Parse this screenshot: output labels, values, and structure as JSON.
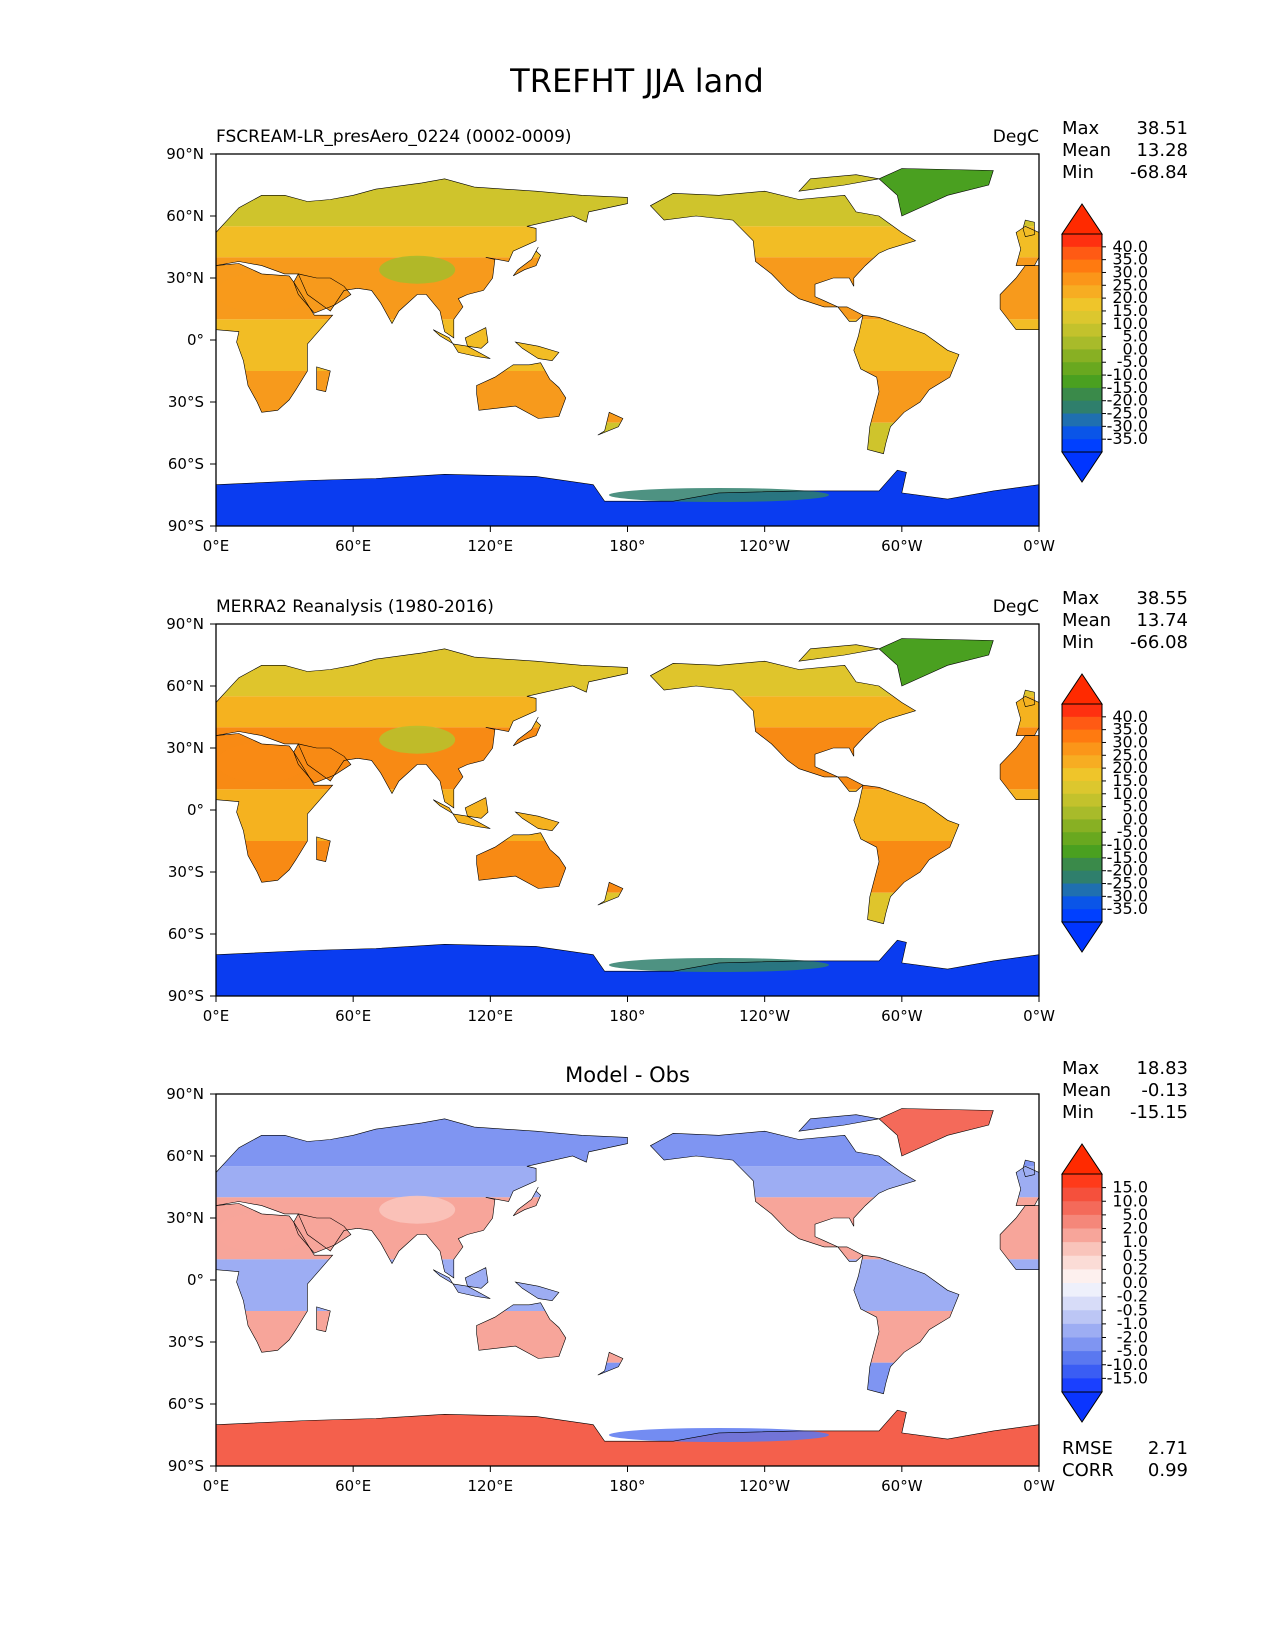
{
  "figure": {
    "title": "TREFHT JJA land"
  },
  "panels": [
    {
      "id": "model",
      "left_title": "FSCREAM-LR_presAero_0224 (0002-0009)",
      "center_title": "",
      "units": "DegC",
      "stats": [
        {
          "label": "Max",
          "value": "38.51"
        },
        {
          "label": "Mean",
          "value": "13.28"
        },
        {
          "label": "Min",
          "value": "-68.84"
        }
      ],
      "colorbar": {
        "labels": [
          "40.0",
          "35.0",
          "30.0",
          "25.0",
          "20.0",
          "15.0",
          "10.0",
          "5.0",
          "0.0",
          "-5.0",
          "-10.0",
          "-15.0",
          "-20.0",
          "-25.0",
          "-30.0",
          "-35.0"
        ],
        "colors": [
          "#ff3010",
          "#ff5a14",
          "#ff7a10",
          "#fb9619",
          "#f7ad22",
          "#efc52a",
          "#dcc72e",
          "#c3c22c",
          "#a8bb2a",
          "#88b023",
          "#69a81f",
          "#4aa020",
          "#3a8a4a",
          "#2f7f6c",
          "#1f6fb0",
          "#0a55e8",
          "#0040ff"
        ],
        "over_color": "#ff2a00",
        "under_color": "#0035ff"
      },
      "extra_stats": []
    },
    {
      "id": "obs",
      "left_title": "MERRA2 Reanalysis (1980-2016)",
      "center_title": "",
      "units": "DegC",
      "stats": [
        {
          "label": "Max",
          "value": "38.55"
        },
        {
          "label": "Mean",
          "value": "13.74"
        },
        {
          "label": "Min",
          "value": "-66.08"
        }
      ],
      "colorbar": {
        "labels": [
          "40.0",
          "35.0",
          "30.0",
          "25.0",
          "20.0",
          "15.0",
          "10.0",
          "5.0",
          "0.0",
          "-5.0",
          "-10.0",
          "-15.0",
          "-20.0",
          "-25.0",
          "-30.0",
          "-35.0"
        ],
        "colors": [
          "#ff3010",
          "#ff5a14",
          "#ff7a10",
          "#fb9619",
          "#f7ad22",
          "#efc52a",
          "#dcc72e",
          "#c3c22c",
          "#a8bb2a",
          "#88b023",
          "#69a81f",
          "#4aa020",
          "#3a8a4a",
          "#2f7f6c",
          "#1f6fb0",
          "#0a55e8",
          "#0040ff"
        ],
        "over_color": "#ff2a00",
        "under_color": "#0035ff"
      },
      "extra_stats": []
    },
    {
      "id": "diff",
      "left_title": "",
      "center_title": "Model - Obs",
      "units": "",
      "stats": [
        {
          "label": "Max",
          "value": "18.83"
        },
        {
          "label": "Mean",
          "value": "-0.13"
        },
        {
          "label": "Min",
          "value": "-15.15"
        }
      ],
      "colorbar": {
        "labels": [
          "15.0",
          "10.0",
          "5.0",
          "2.0",
          "1.0",
          "0.5",
          "0.2",
          "0.0",
          "-0.2",
          "-0.5",
          "-1.0",
          "-2.0",
          "-5.0",
          "-10.0",
          "-15.0"
        ],
        "colors": [
          "#ff3a1a",
          "#f5503c",
          "#f46a5a",
          "#f5877a",
          "#f7a59a",
          "#f9c4bb",
          "#fbdcd6",
          "#fdf0ee",
          "#eef0fb",
          "#d7dcf8",
          "#bcc6f5",
          "#9dadf3",
          "#7f95f2",
          "#5a78f0",
          "#3a5df4",
          "#1a40ff"
        ],
        "over_color": "#ff2a00",
        "under_color": "#0a35ff"
      },
      "extra_stats": [
        {
          "label": "RMSE",
          "value": "2.71"
        },
        {
          "label": "CORR",
          "value": "0.99"
        }
      ]
    }
  ],
  "axes": {
    "x_tick_labels": [
      "0°E",
      "60°E",
      "120°E",
      "180°",
      "120°W",
      "60°W",
      "0°W"
    ],
    "y_tick_labels": [
      "90°N",
      "60°N",
      "30°N",
      "0°",
      "30°S",
      "60°S",
      "90°S"
    ],
    "xlim": [
      0,
      360
    ],
    "ylim": [
      -90,
      90
    ]
  },
  "land_palettes": {
    "model": {
      "tropics": "#f79a1c",
      "midlat": "#f2bd25",
      "highlat": "#cfc42c",
      "plateau": "#a9bb2a",
      "greenland": "#4aa020",
      "antarctica": "#0a3cf0",
      "antarctica_edge": "#2f7f6c"
    },
    "obs": {
      "tropics": "#f88a14",
      "midlat": "#f5b21f",
      "highlat": "#dfc52c",
      "plateau": "#b8c02b",
      "greenland": "#4aa020",
      "antarctica": "#0a3cf0",
      "antarctica_edge": "#2f7f6c"
    },
    "diff": {
      "tropics": "#f7a59a",
      "midlat": "#9dadf3",
      "highlat": "#7f95f2",
      "plateau": "#f9c4bb",
      "greenland": "#f46a5a",
      "antarctica": "#f4604c",
      "antarctica_edge": "#5a78f0"
    }
  }
}
